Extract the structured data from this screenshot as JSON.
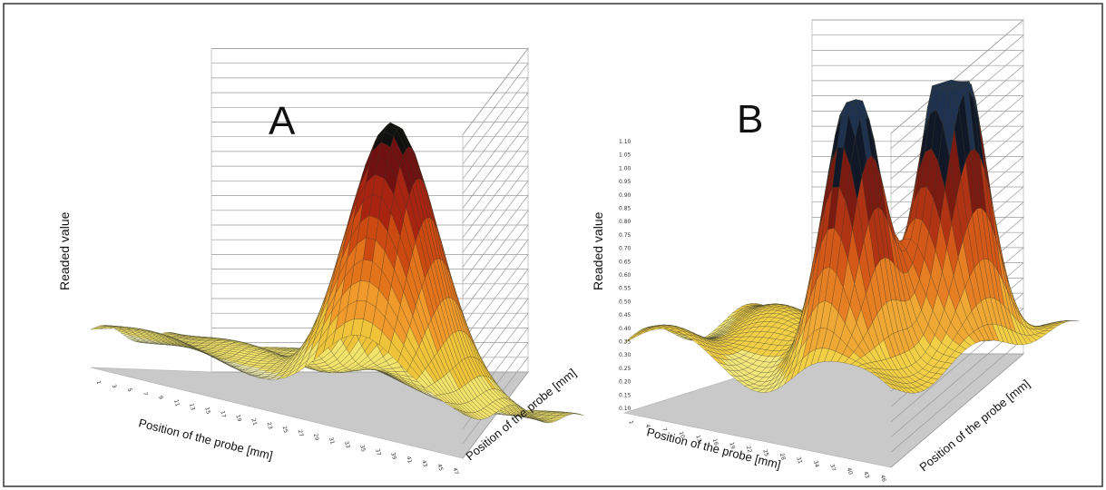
{
  "chart_data": [
    {
      "type": "surface3d",
      "panel_label": "A",
      "zlabel": "Readed value",
      "xlabel": "Position of the probe [mm]",
      "ylabel": "Position of the probe [mm]",
      "x_ticks": [
        "1",
        "3",
        "5",
        "7",
        "9",
        "11",
        "13",
        "15",
        "17",
        "19",
        "21",
        "23",
        "25",
        "27",
        "29",
        "31",
        "33",
        "35",
        "37",
        "39",
        "41",
        "43",
        "45",
        "47"
      ],
      "peaks": [
        {
          "x_mm": 34,
          "y_mm": 16,
          "height": 1.0,
          "width_x": 5,
          "width_y": 9
        }
      ],
      "baseline": 0.18,
      "color_bands": [
        "#f7f4b6",
        "#f3e36a",
        "#f0c43a",
        "#f09a2c",
        "#e4741c",
        "#cc4a12",
        "#a82410",
        "#701010",
        "#101010"
      ],
      "grid": true
    },
    {
      "type": "surface3d",
      "panel_label": "B",
      "zlabel": "Readed value",
      "xlabel": "Position of the probe [mm]",
      "ylabel": "Position of the probe [mm]",
      "z_ticks": [
        "0.10",
        "0.15",
        "0.20",
        "0.25",
        "0.30",
        "0.35",
        "0.40",
        "0.45",
        "0.50",
        "0.55",
        "0.60",
        "0.65",
        "0.70",
        "0.75",
        "0.80",
        "0.85",
        "0.90",
        "0.95",
        "1.00",
        "1.05",
        "1.10"
      ],
      "z_range": [
        0.1,
        1.1
      ],
      "x_ticks": [
        "1",
        "4",
        "7",
        "10",
        "13",
        "16",
        "19",
        "22",
        "25",
        "28",
        "31",
        "34",
        "37",
        "40",
        "43",
        "46"
      ],
      "peaks": [
        {
          "x_mm": 33,
          "y_mm": 12,
          "height": 0.98,
          "width_x": 4,
          "width_y": 5
        },
        {
          "x_mm": 38,
          "y_mm": 30,
          "height": 1.12,
          "width_x": 4,
          "width_y": 6
        }
      ],
      "baseline": 0.32,
      "color_bands": [
        "#f8f5c8",
        "#f4e77a",
        "#f2cf44",
        "#f0a834",
        "#e67e24",
        "#d45818",
        "#b03414",
        "#7a1a10",
        "#101828",
        "#1e3250"
      ],
      "grid": true
    }
  ]
}
